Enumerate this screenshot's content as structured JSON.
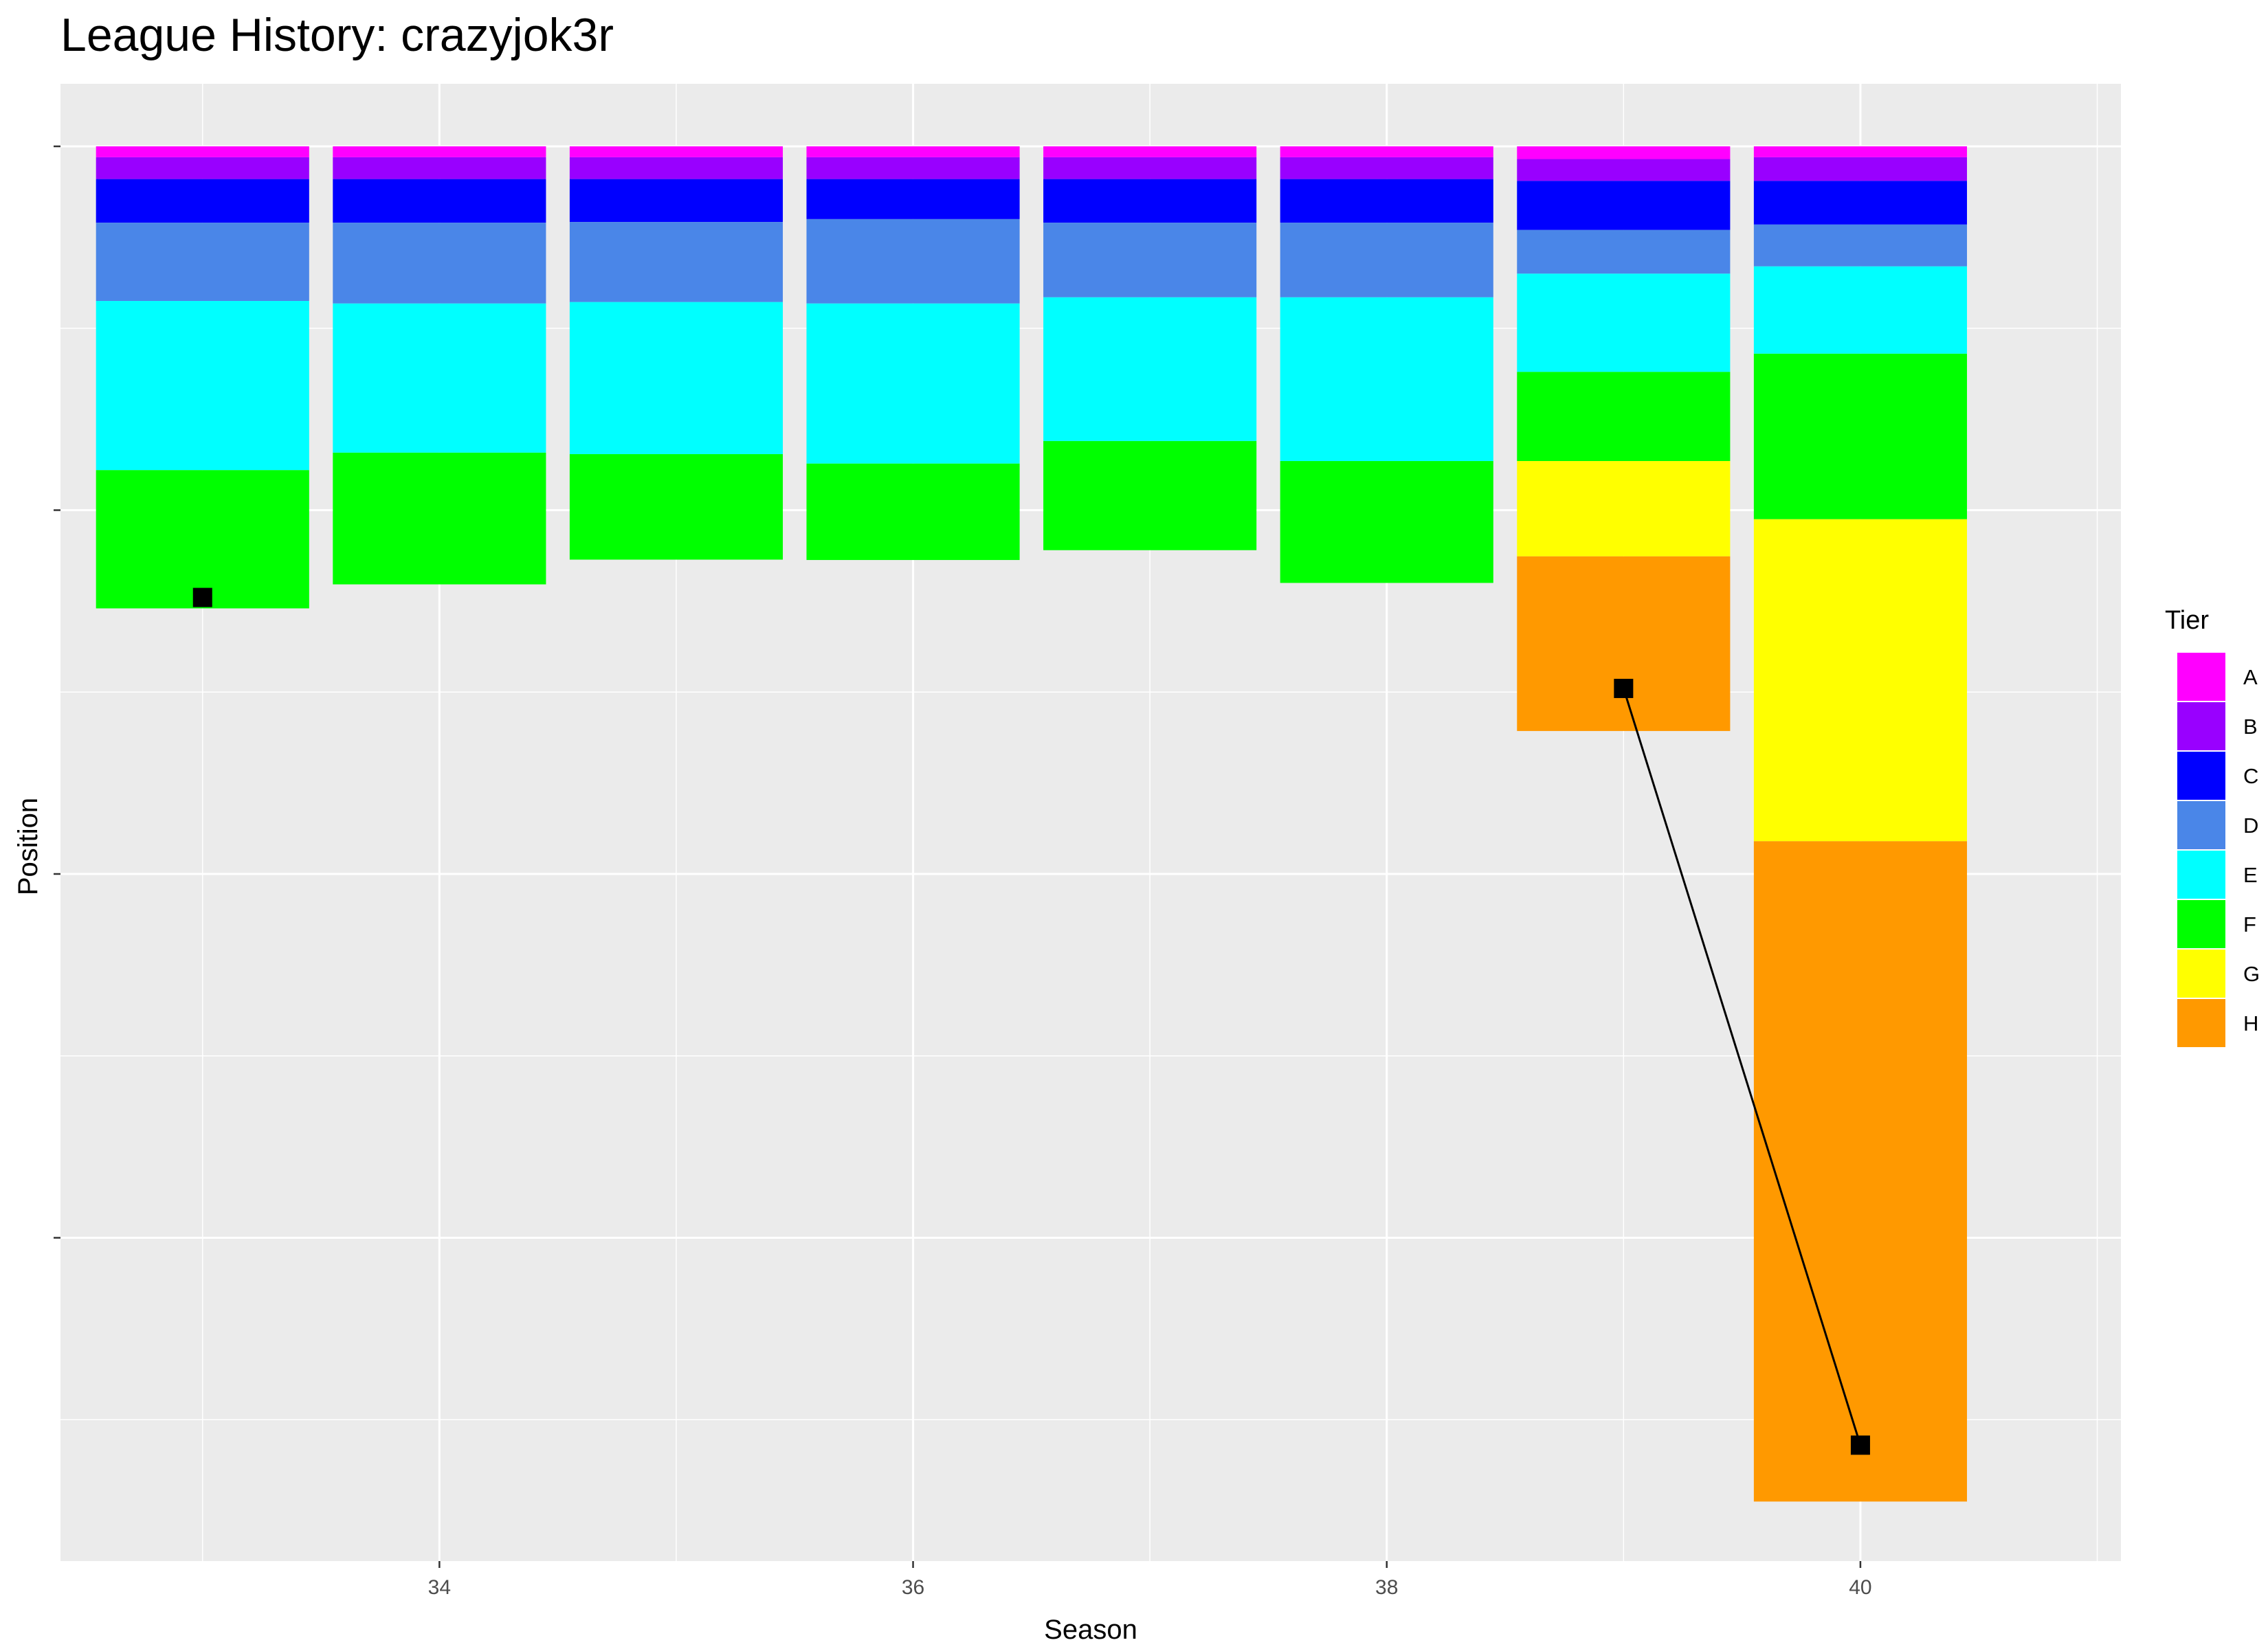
{
  "title": "League History: crazyjok3r",
  "chart_data": {
    "type": "bar",
    "stacked": true,
    "title": "League History: crazyjok3r",
    "xlabel": "Season",
    "ylabel": "Position",
    "x_ticks": [
      34,
      36,
      38,
      40
    ],
    "xlim": [
      32.4,
      41.1
    ],
    "y_reversed": true,
    "ylim": [
      0,
      3900
    ],
    "y_tick_values": [
      0,
      1000,
      2000,
      3000
    ],
    "y_tick_labels_visible": false,
    "grid": true,
    "legend_position": "right",
    "legend_title": "Tier",
    "tiers": [
      {
        "name": "A",
        "color": "#FF00FF"
      },
      {
        "name": "B",
        "color": "#9900FF"
      },
      {
        "name": "C",
        "color": "#0000FF"
      },
      {
        "name": "D",
        "color": "#4A86E8"
      },
      {
        "name": "E",
        "color": "#00FFFF"
      },
      {
        "name": "F",
        "color": "#00FF00"
      },
      {
        "name": "G",
        "color": "#FFFF00"
      },
      {
        "name": "H",
        "color": "#FF9900"
      }
    ],
    "seasons": [
      {
        "season": 33,
        "tier_sizes": [
          30,
          60,
          120,
          215,
          465,
          380
        ],
        "position": 1240
      },
      {
        "season": 34,
        "tier_sizes": [
          30,
          60,
          120,
          222,
          410,
          362
        ],
        "position": null
      },
      {
        "season": 35,
        "tier_sizes": [
          30,
          60,
          118,
          220,
          418,
          290
        ],
        "position": null
      },
      {
        "season": 36,
        "tier_sizes": [
          30,
          60,
          110,
          232,
          440,
          265
        ],
        "position": null
      },
      {
        "season": 37,
        "tier_sizes": [
          30,
          60,
          120,
          205,
          395,
          300
        ],
        "position": null
      },
      {
        "season": 38,
        "tier_sizes": [
          30,
          60,
          120,
          205,
          450,
          335
        ],
        "position": null
      },
      {
        "season": 39,
        "tier_sizes": [
          35,
          60,
          135,
          120,
          270,
          245,
          262,
          480
        ],
        "position": 1490
      },
      {
        "season": 40,
        "tier_sizes": [
          30,
          65,
          120,
          115,
          240,
          455,
          885,
          1815
        ],
        "position": 3570
      }
    ],
    "position_line_series": [
      39,
      40
    ]
  }
}
